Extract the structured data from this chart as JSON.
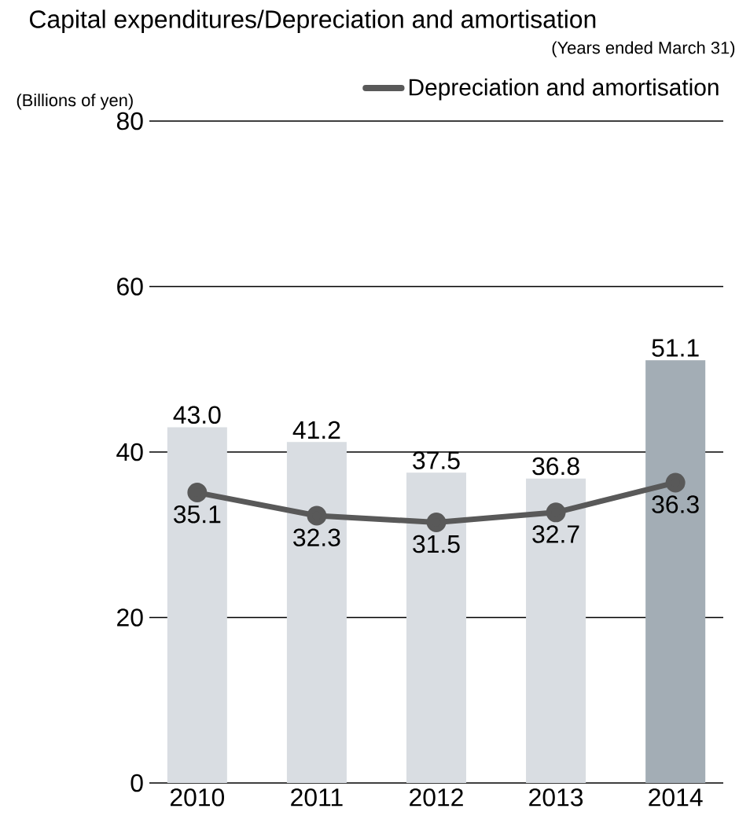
{
  "chart_data": {
    "type": "bar",
    "title": "Capital expenditures/Depreciation and amortisation",
    "annotations": [
      "(Years ended March 31)"
    ],
    "ylabel": "(Billions of yen)",
    "categories": [
      "2010",
      "2011",
      "2012",
      "2013",
      "2014"
    ],
    "series": [
      {
        "colors": [
          "#d9dde2",
          "#d9dde2",
          "#d9dde2",
          "#d9dde2",
          "#a3adb5"
        ],
        "values": [
          43.0,
          41.2,
          37.5,
          36.8,
          51.1
        ],
        "value_labels": [
          "43.0",
          "41.2",
          "37.5",
          "36.8",
          "51.1"
        ]
      },
      {
        "type": "line",
        "name": "Depreciation and amortisation",
        "color": "#595959",
        "values": [
          35.1,
          32.3,
          31.5,
          32.7,
          36.3
        ],
        "value_labels": [
          "35.1",
          "32.3",
          "31.5",
          "32.7",
          "36.3"
        ],
        "marker": "circle"
      }
    ],
    "ylim": [
      0,
      80
    ],
    "yticks": [
      0,
      20,
      40,
      60,
      80
    ],
    "grid": "y",
    "legend": "top right"
  }
}
